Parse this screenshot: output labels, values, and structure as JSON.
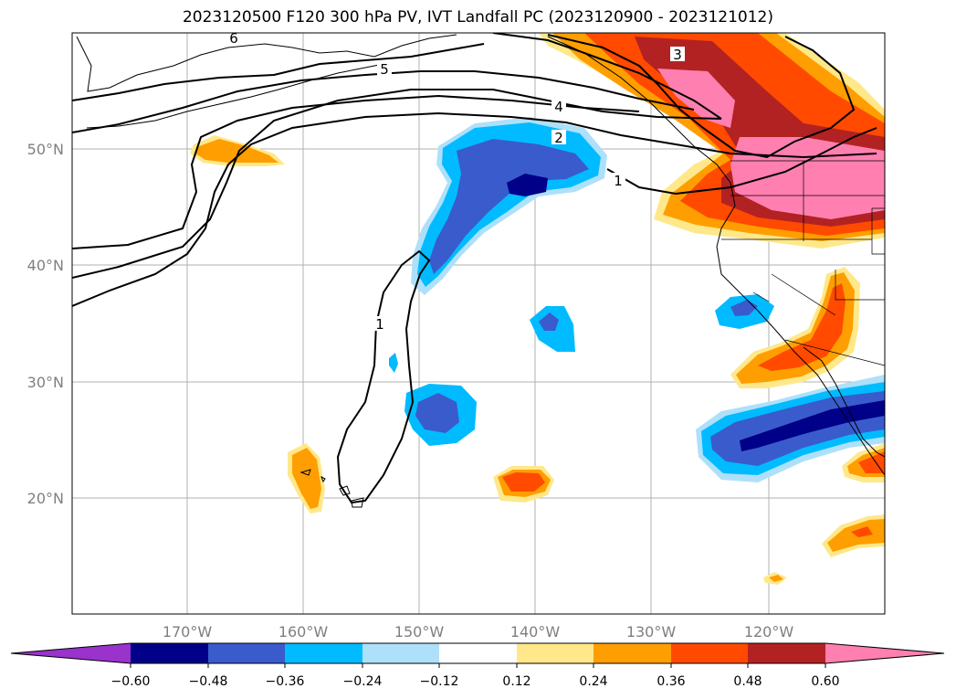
{
  "title": "2023120500 F120 300 hPa PV, IVT Landfall PC (2023120900 - 2023121012)",
  "map": {
    "lon_labels": [
      "170°W",
      "160°W",
      "150°W",
      "140°W",
      "130°W",
      "120°W"
    ],
    "lat_labels": [
      "50°N",
      "40°N",
      "30°N",
      "20°N"
    ],
    "contour_labels": [
      "6",
      "5",
      "4",
      "2",
      "1",
      "3",
      "1"
    ],
    "gridlines": true
  },
  "colorbar": {
    "ticks": [
      "−0.60",
      "−0.48",
      "−0.36",
      "−0.24",
      "−0.12",
      "0.12",
      "0.24",
      "0.36",
      "0.48",
      "0.60"
    ],
    "colors": {
      "under": "#9933cc",
      "b1": "#000088",
      "b2": "#3a5bcc",
      "b3": "#00bbff",
      "b4": "#aee0fa",
      "b5": "#ffffff",
      "b6": "#ffe88a",
      "b7": "#ff9e00",
      "b8": "#ff4a00",
      "b9": "#b22222",
      "over": "#ff80b0"
    }
  }
}
